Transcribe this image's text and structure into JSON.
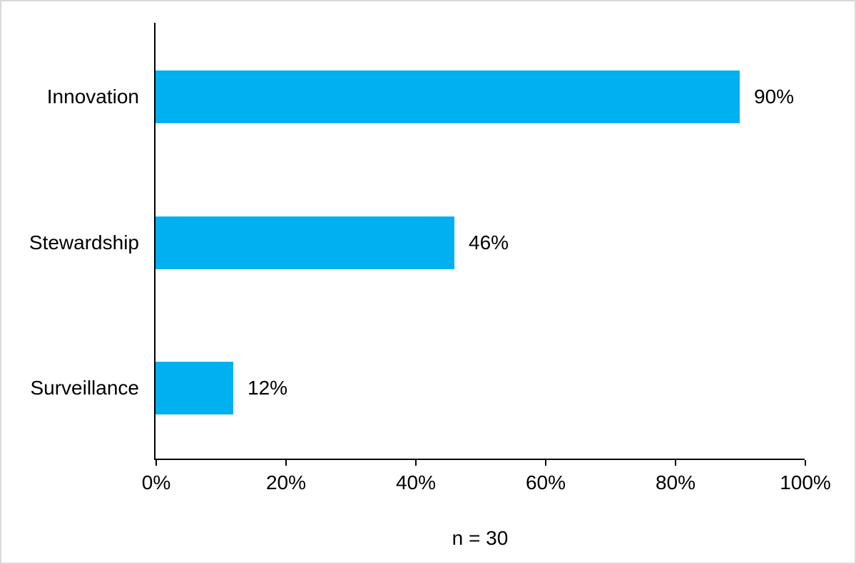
{
  "chart_data": {
    "type": "bar",
    "orientation": "horizontal",
    "title": "",
    "categories": [
      "Innovation",
      "Stewardship",
      "Surveillance"
    ],
    "values": [
      90,
      46,
      12
    ],
    "value_labels": [
      "90%",
      "46%",
      "12%"
    ],
    "x_tick_values": [
      0,
      20,
      40,
      60,
      80,
      100
    ],
    "x_tick_labels": [
      "0%",
      "20%",
      "40%",
      "60%",
      "80%",
      "100%"
    ],
    "xlim": [
      0,
      100
    ],
    "grid": false,
    "legend": false,
    "caption": "n = 30",
    "bar_color": "#00B0F0",
    "axis_color": "#000000",
    "text_color": "#000000"
  }
}
